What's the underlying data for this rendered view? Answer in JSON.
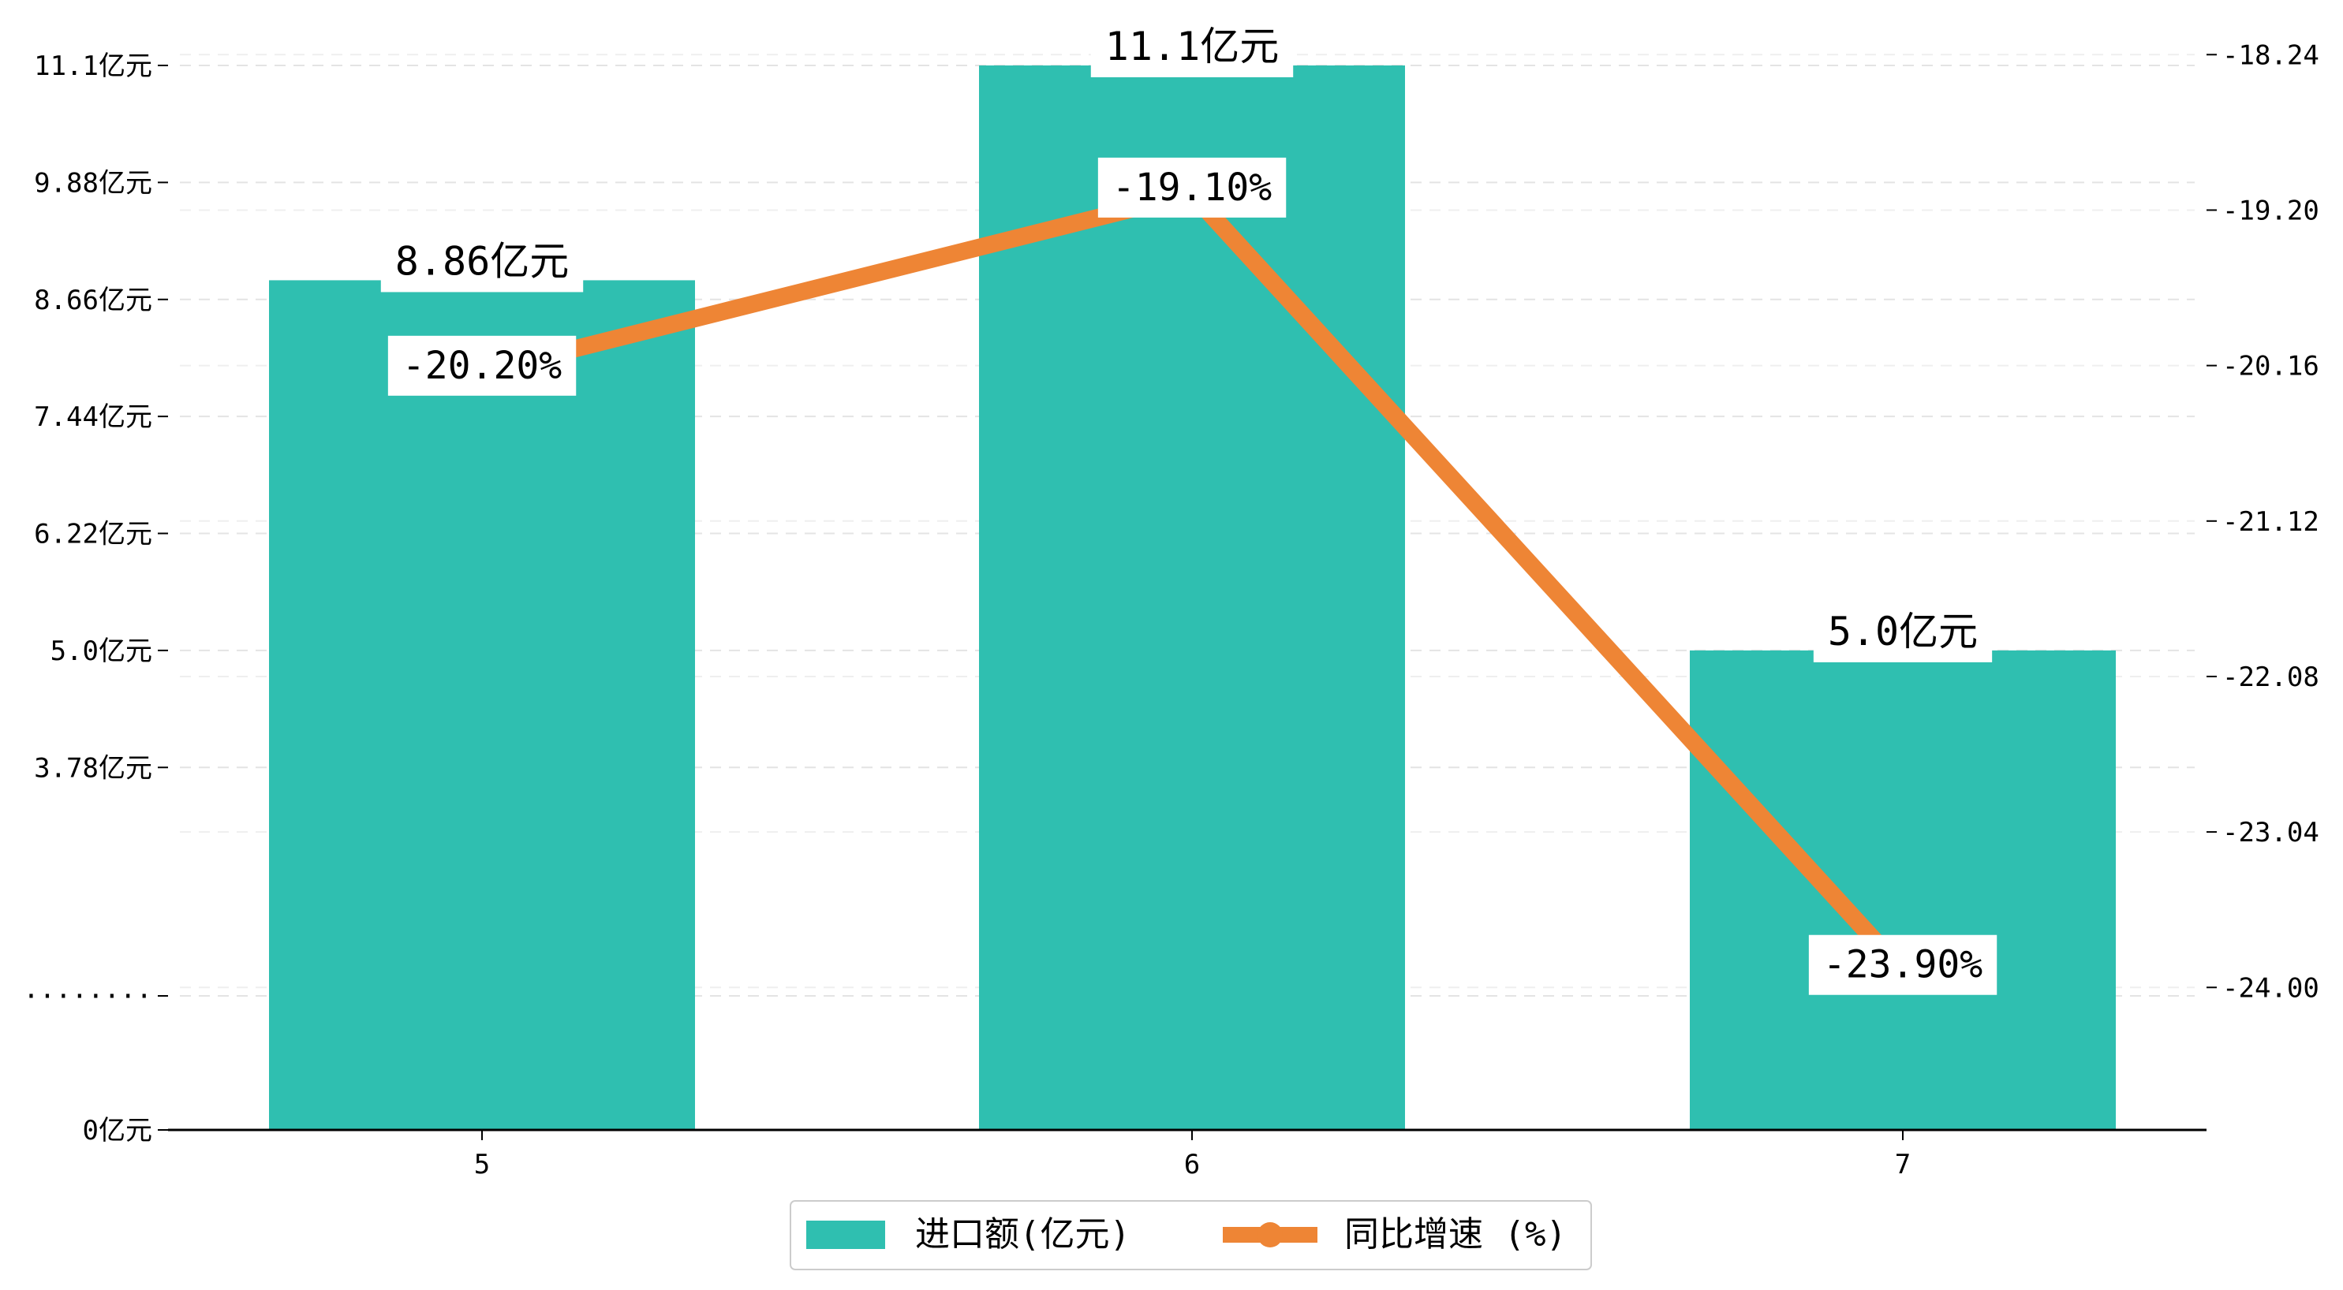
{
  "chart_data": {
    "type": "bar",
    "categories": [
      "5",
      "6",
      "7"
    ],
    "series": [
      {
        "name": "进口额(亿元)",
        "kind": "bar",
        "axis": "left",
        "values": [
          8.86,
          11.1,
          5.0
        ],
        "labels": [
          "8.86亿元",
          "11.1亿元",
          "5.0亿元"
        ],
        "color": "#2fbfb0"
      },
      {
        "name": "同比增速 (%)",
        "kind": "line",
        "axis": "right",
        "values": [
          -20.2,
          -19.1,
          -23.9
        ],
        "labels": [
          "-20.20%",
          "-19.10%",
          "-23.90%"
        ],
        "color": "#ee8535"
      }
    ],
    "left_axis": {
      "ticks": [
        {
          "value": 0,
          "label": "0亿元"
        },
        {
          "value": 1.3,
          "label": "········"
        },
        {
          "value": 3.78,
          "label": "3.78亿元"
        },
        {
          "value": 5.0,
          "label": "5.0亿元"
        },
        {
          "value": 6.22,
          "label": "6.22亿元"
        },
        {
          "value": 7.44,
          "label": "7.44亿元"
        },
        {
          "value": 8.66,
          "label": "8.66亿元"
        },
        {
          "value": 9.88,
          "label": "9.88亿元"
        },
        {
          "value": 11.1,
          "label": "11.1亿元"
        }
      ]
    },
    "right_axis": {
      "ylim": [
        -24.88,
        -18.0
      ],
      "ticks": [
        {
          "value": -18.24,
          "label": "-18.24"
        },
        {
          "value": -19.2,
          "label": "-19.20"
        },
        {
          "value": -20.16,
          "label": "-20.16"
        },
        {
          "value": -21.12,
          "label": "-21.12"
        },
        {
          "value": -22.08,
          "label": "-22.08"
        },
        {
          "value": -23.04,
          "label": "-23.04"
        },
        {
          "value": -24.0,
          "label": "-24.00"
        }
      ]
    },
    "grid": "dashed horizontal",
    "legend": "bottom-center"
  }
}
